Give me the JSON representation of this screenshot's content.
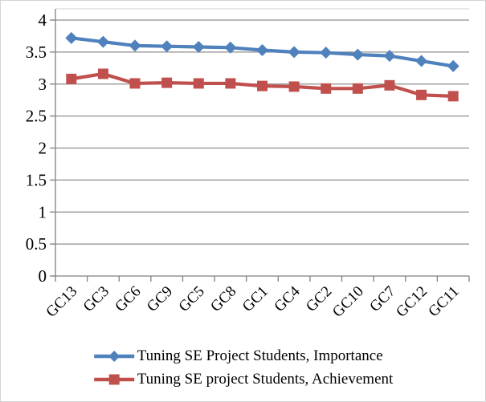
{
  "chart_data": {
    "type": "line",
    "title": "",
    "xlabel": "",
    "ylabel": "",
    "categories": [
      "GC13",
      "GC3",
      "GC6",
      "GC9",
      "GC5",
      "GC8",
      "GC1",
      "GC4",
      "GC2",
      "GC10",
      "GC7",
      "GC12",
      "GC11"
    ],
    "series": [
      {
        "name": "Tuning SE Project Students, Importance",
        "marker": "diamond",
        "color": "#4f81bd",
        "values": [
          3.72,
          3.66,
          3.6,
          3.59,
          3.58,
          3.57,
          3.53,
          3.5,
          3.49,
          3.46,
          3.44,
          3.36,
          3.28
        ]
      },
      {
        "name": "Tuning SE project Students, Achievement",
        "marker": "square",
        "color": "#c0504d",
        "values": [
          3.08,
          3.16,
          3.01,
          3.02,
          3.01,
          3.01,
          2.97,
          2.96,
          2.93,
          2.93,
          2.98,
          2.83,
          2.81
        ]
      }
    ],
    "ylim": [
      0,
      4
    ],
    "ytick_labels": [
      "0",
      "0.5",
      "1",
      "1.5",
      "2",
      "2.5",
      "3",
      "3.5",
      "4"
    ],
    "grid": true,
    "legend_position": "bottom"
  },
  "colors": {
    "axis": "#808080",
    "grid": "#8e8e8e",
    "plot_top_border": "#d9d9d9",
    "background": "#ffffff",
    "text": "#000000"
  }
}
